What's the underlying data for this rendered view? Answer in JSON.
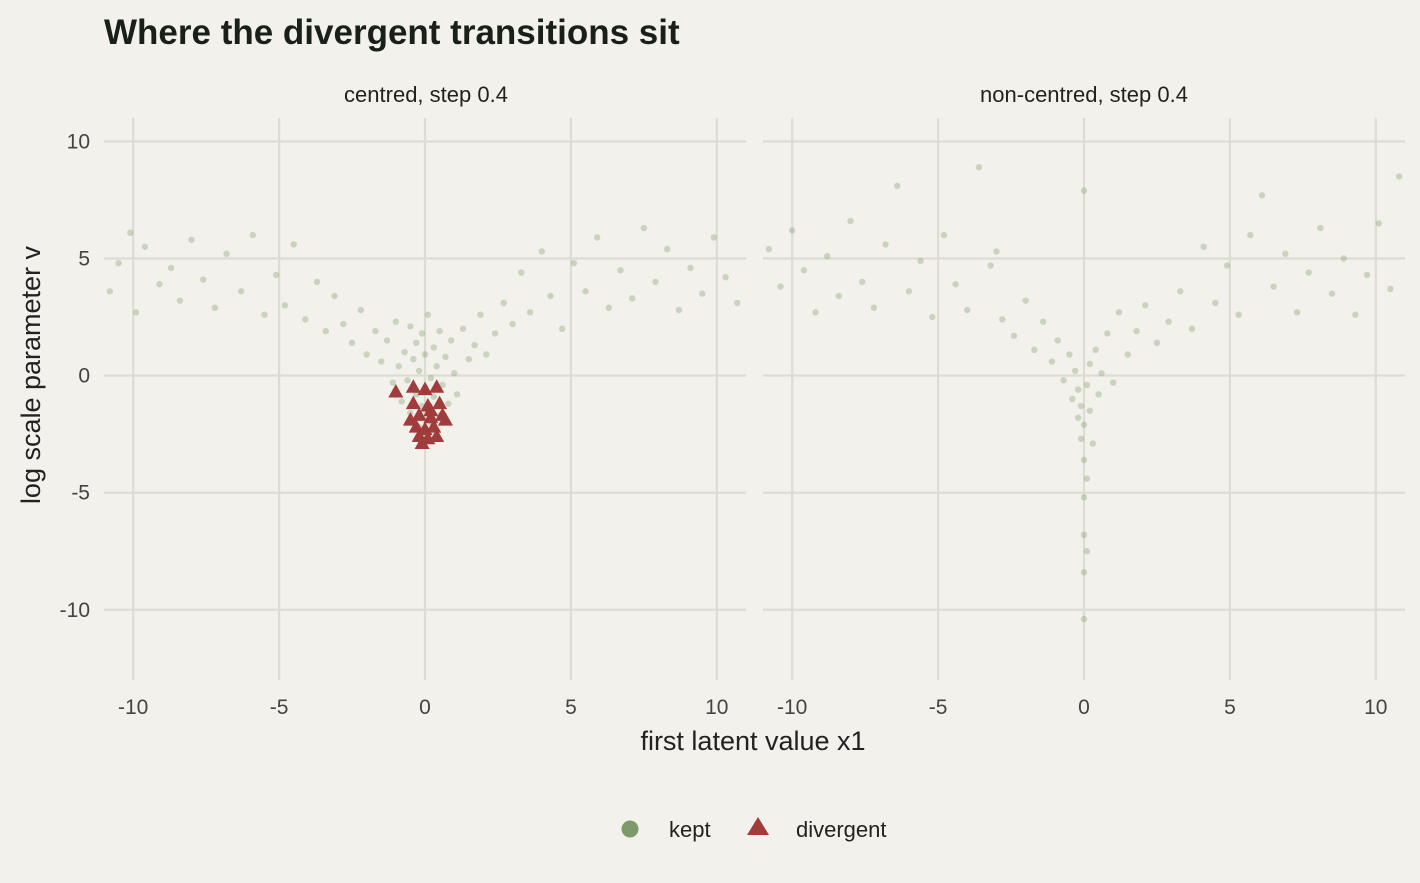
{
  "chart_data": {
    "type": "scatter",
    "title": "Where the divergent transitions sit",
    "xlabel": "first latent value x1",
    "ylabel": "log scale parameter v",
    "xlim": [
      -11,
      11
    ],
    "ylim": [
      -13,
      11
    ],
    "x_ticks": [
      -10,
      -5,
      0,
      5,
      10
    ],
    "y_ticks": [
      -10,
      -5,
      0,
      5,
      10
    ],
    "x_tick_labels": [
      "-10",
      "-5",
      "0",
      "5",
      "10"
    ],
    "y_tick_labels": [
      "-10",
      "-5",
      "0",
      "5",
      "10"
    ],
    "grid": true,
    "legend_position": "bottom",
    "colors": {
      "kept": "#7d9a6a",
      "divergent": "#a23b3b",
      "background": "#f2f1eb",
      "grid": "#dcdcd2"
    },
    "legend": [
      {
        "label": "kept",
        "marker": "circle",
        "color": "#7d9a6a"
      },
      {
        "label": "divergent",
        "marker": "triangle",
        "color": "#a23b3b"
      }
    ],
    "panels": [
      {
        "label": "centred, step 0.4",
        "kept_points": [
          [
            -10.8,
            3.6
          ],
          [
            -10.5,
            4.8
          ],
          [
            -10.1,
            6.1
          ],
          [
            -9.9,
            2.7
          ],
          [
            -9.6,
            5.5
          ],
          [
            -9.1,
            3.9
          ],
          [
            -8.7,
            4.6
          ],
          [
            -8.4,
            3.2
          ],
          [
            -8.0,
            5.8
          ],
          [
            -7.6,
            4.1
          ],
          [
            -7.2,
            2.9
          ],
          [
            -6.8,
            5.2
          ],
          [
            -6.3,
            3.6
          ],
          [
            -5.9,
            6.0
          ],
          [
            -5.5,
            2.6
          ],
          [
            -5.1,
            4.3
          ],
          [
            -4.8,
            3.0
          ],
          [
            -4.5,
            5.6
          ],
          [
            -4.1,
            2.4
          ],
          [
            -3.7,
            4.0
          ],
          [
            -3.4,
            1.9
          ],
          [
            -3.1,
            3.4
          ],
          [
            -2.8,
            2.2
          ],
          [
            -2.5,
            1.4
          ],
          [
            -2.2,
            2.8
          ],
          [
            -2.0,
            0.9
          ],
          [
            -1.7,
            1.9
          ],
          [
            -1.5,
            0.6
          ],
          [
            -1.3,
            1.5
          ],
          [
            -1.1,
            -0.3
          ],
          [
            -1.0,
            2.3
          ],
          [
            -0.9,
            0.4
          ],
          [
            -0.8,
            -1.1
          ],
          [
            -0.7,
            1.0
          ],
          [
            -0.6,
            -0.2
          ],
          [
            -0.5,
            2.1
          ],
          [
            -0.5,
            -1.6
          ],
          [
            -0.4,
            0.7
          ],
          [
            -0.3,
            -0.8
          ],
          [
            -0.3,
            1.4
          ],
          [
            -0.2,
            -2.2
          ],
          [
            -0.2,
            0.2
          ],
          [
            -0.1,
            -1.3
          ],
          [
            -0.1,
            1.8
          ],
          [
            0.0,
            -0.5
          ],
          [
            0.0,
            -2.6
          ],
          [
            0.0,
            0.9
          ],
          [
            0.1,
            -1.6
          ],
          [
            0.1,
            2.6
          ],
          [
            0.2,
            -0.1
          ],
          [
            0.2,
            -2.0
          ],
          [
            0.3,
            1.2
          ],
          [
            0.3,
            -0.9
          ],
          [
            0.4,
            0.4
          ],
          [
            0.5,
            -1.7
          ],
          [
            0.5,
            1.9
          ],
          [
            0.6,
            -0.4
          ],
          [
            0.7,
            0.8
          ],
          [
            0.8,
            -1.2
          ],
          [
            0.9,
            1.5
          ],
          [
            1.0,
            0.1
          ],
          [
            1.1,
            -0.8
          ],
          [
            1.3,
            2.0
          ],
          [
            1.5,
            0.7
          ],
          [
            1.7,
            1.3
          ],
          [
            1.9,
            2.6
          ],
          [
            2.1,
            0.9
          ],
          [
            2.4,
            1.8
          ],
          [
            2.7,
            3.1
          ],
          [
            3.0,
            2.2
          ],
          [
            3.3,
            4.4
          ],
          [
            3.6,
            2.7
          ],
          [
            4.0,
            5.3
          ],
          [
            4.3,
            3.4
          ],
          [
            4.7,
            2.0
          ],
          [
            5.1,
            4.8
          ],
          [
            5.5,
            3.6
          ],
          [
            5.9,
            5.9
          ],
          [
            6.3,
            2.9
          ],
          [
            6.7,
            4.5
          ],
          [
            7.1,
            3.3
          ],
          [
            7.5,
            6.3
          ],
          [
            7.9,
            4.0
          ],
          [
            8.3,
            5.4
          ],
          [
            8.7,
            2.8
          ],
          [
            9.1,
            4.6
          ],
          [
            9.5,
            3.5
          ],
          [
            9.9,
            5.9
          ],
          [
            10.3,
            4.2
          ],
          [
            10.7,
            3.1
          ]
        ],
        "divergent_points": [
          [
            -1.0,
            -0.7
          ],
          [
            -0.4,
            -0.5
          ],
          [
            0.0,
            -0.6
          ],
          [
            0.4,
            -0.5
          ],
          [
            -0.4,
            -1.2
          ],
          [
            0.1,
            -1.3
          ],
          [
            0.5,
            -1.2
          ],
          [
            -0.2,
            -1.7
          ],
          [
            0.2,
            -1.8
          ],
          [
            0.6,
            -1.7
          ],
          [
            -0.3,
            -2.2
          ],
          [
            0.0,
            -2.3
          ],
          [
            0.3,
            -2.2
          ],
          [
            -0.2,
            -2.6
          ],
          [
            0.1,
            -2.7
          ],
          [
            0.4,
            -2.6
          ],
          [
            -0.1,
            -2.9
          ],
          [
            0.2,
            -1.5
          ],
          [
            -0.5,
            -1.9
          ],
          [
            0.7,
            -1.9
          ]
        ]
      },
      {
        "label": "non-centred, step 0.4",
        "kept_points": [
          [
            -10.8,
            5.4
          ],
          [
            -10.4,
            3.8
          ],
          [
            -10.0,
            6.2
          ],
          [
            -9.6,
            4.5
          ],
          [
            -9.2,
            2.7
          ],
          [
            -8.8,
            5.1
          ],
          [
            -8.4,
            3.4
          ],
          [
            -8.0,
            6.6
          ],
          [
            -7.6,
            4.0
          ],
          [
            -7.2,
            2.9
          ],
          [
            -6.8,
            5.6
          ],
          [
            -6.4,
            8.1
          ],
          [
            -6.0,
            3.6
          ],
          [
            -5.6,
            4.9
          ],
          [
            -5.2,
            2.5
          ],
          [
            -4.8,
            6.0
          ],
          [
            -4.4,
            3.9
          ],
          [
            -4.0,
            2.8
          ],
          [
            -3.6,
            8.9
          ],
          [
            -3.2,
            4.7
          ],
          [
            -2.8,
            2.4
          ],
          [
            -2.4,
            1.7
          ],
          [
            -2.0,
            3.2
          ],
          [
            -1.7,
            1.1
          ],
          [
            -1.4,
            2.3
          ],
          [
            -1.1,
            0.6
          ],
          [
            -0.9,
            1.5
          ],
          [
            -0.7,
            -0.2
          ],
          [
            -0.5,
            0.9
          ],
          [
            -0.4,
            -1.0
          ],
          [
            -0.3,
            0.2
          ],
          [
            -0.2,
            -1.8
          ],
          [
            -0.2,
            -0.6
          ],
          [
            -0.1,
            -2.7
          ],
          [
            -0.1,
            -1.3
          ],
          [
            0.0,
            -3.6
          ],
          [
            0.0,
            -5.2
          ],
          [
            0.0,
            -6.8
          ],
          [
            0.0,
            -8.4
          ],
          [
            0.0,
            -10.4
          ],
          [
            0.0,
            -2.1
          ],
          [
            0.1,
            -0.4
          ],
          [
            0.1,
            -4.4
          ],
          [
            0.1,
            -7.5
          ],
          [
            0.2,
            0.5
          ],
          [
            0.2,
            -1.5
          ],
          [
            0.3,
            -2.9
          ],
          [
            0.4,
            1.1
          ],
          [
            0.5,
            -0.8
          ],
          [
            0.6,
            0.1
          ],
          [
            0.8,
            1.8
          ],
          [
            1.0,
            -0.3
          ],
          [
            1.2,
            2.7
          ],
          [
            1.5,
            0.9
          ],
          [
            1.8,
            1.9
          ],
          [
            2.1,
            3.0
          ],
          [
            2.5,
            1.4
          ],
          [
            2.9,
            2.3
          ],
          [
            3.3,
            3.6
          ],
          [
            3.7,
            2.0
          ],
          [
            4.1,
            5.5
          ],
          [
            4.5,
            3.1
          ],
          [
            4.9,
            4.7
          ],
          [
            5.3,
            2.6
          ],
          [
            5.7,
            6.0
          ],
          [
            6.1,
            7.7
          ],
          [
            6.5,
            3.8
          ],
          [
            6.9,
            5.2
          ],
          [
            7.3,
            2.7
          ],
          [
            7.7,
            4.4
          ],
          [
            8.1,
            6.3
          ],
          [
            8.5,
            3.5
          ],
          [
            8.9,
            5.0
          ],
          [
            9.3,
            2.6
          ],
          [
            9.7,
            4.3
          ],
          [
            10.1,
            6.5
          ],
          [
            10.5,
            3.7
          ],
          [
            10.8,
            8.5
          ],
          [
            0.0,
            7.9
          ],
          [
            -3.0,
            5.3
          ]
        ],
        "divergent_points": []
      }
    ]
  }
}
